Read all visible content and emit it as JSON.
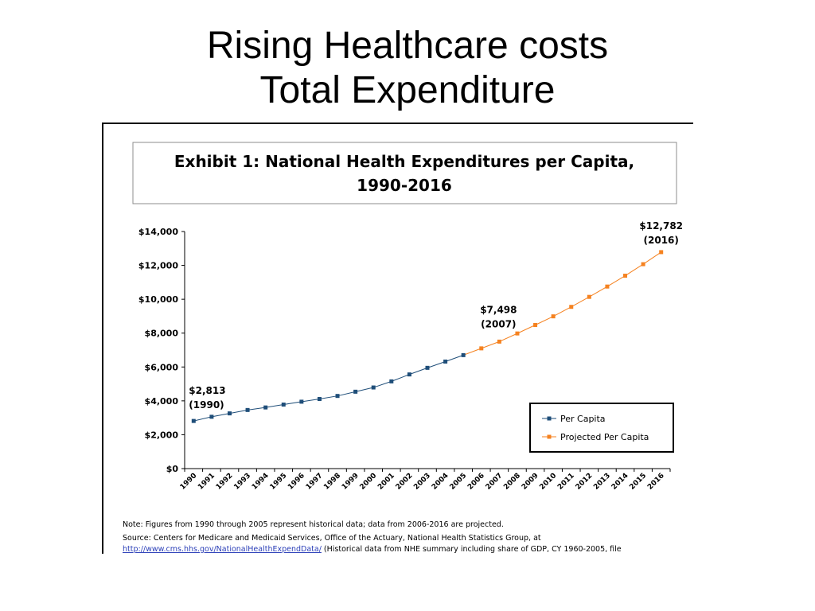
{
  "slide": {
    "title_line1": "Rising Healthcare costs",
    "title_line2": "Total Expenditure"
  },
  "chart_data": {
    "type": "line",
    "title": "Exhibit 1: National Health Expenditures per Capita, 1990-2016",
    "title_line1": "Exhibit 1: National Health Expenditures per Capita,",
    "title_line2": "1990-2016",
    "x": [
      "1990",
      "1991",
      "1992",
      "1993",
      "1994",
      "1995",
      "1996",
      "1997",
      "1998",
      "1999",
      "2000",
      "2001",
      "2002",
      "2003",
      "2004",
      "2005",
      "2006",
      "2007",
      "2008",
      "2009",
      "2010",
      "2011",
      "2012",
      "2013",
      "2014",
      "2015",
      "2016"
    ],
    "ylim": [
      0,
      14000
    ],
    "yticks": [
      0,
      2000,
      4000,
      6000,
      8000,
      10000,
      12000,
      14000
    ],
    "ytick_labels": [
      "$0",
      "$2,000",
      "$4,000",
      "$6,000",
      "$8,000",
      "$10,000",
      "$12,000",
      "$14,000"
    ],
    "series": [
      {
        "name": "Per Capita",
        "color": "#1f4e79",
        "x": [
          "1990",
          "1991",
          "1992",
          "1993",
          "1994",
          "1995",
          "1996",
          "1997",
          "1998",
          "1999",
          "2000",
          "2001",
          "2002",
          "2003",
          "2004",
          "2005"
        ],
        "values": [
          2813,
          3060,
          3260,
          3460,
          3610,
          3780,
          3950,
          4110,
          4290,
          4540,
          4790,
          5150,
          5560,
          5950,
          6320,
          6700
        ]
      },
      {
        "name": "Projected Per Capita",
        "color": "#f58220",
        "x": [
          "2006",
          "2007",
          "2008",
          "2009",
          "2010",
          "2011",
          "2012",
          "2013",
          "2014",
          "2015",
          "2016"
        ],
        "values": [
          7100,
          7498,
          7980,
          8480,
          8990,
          9550,
          10140,
          10750,
          11390,
          12070,
          12782
        ]
      }
    ],
    "annotations": [
      {
        "x": "1990",
        "value": 2813,
        "line1": "$2,813",
        "line2": "(1990)"
      },
      {
        "x": "2007",
        "value": 7498,
        "line1": "$7,498",
        "line2": "(2007)"
      },
      {
        "x": "2016",
        "value": 12782,
        "line1": "$12,782",
        "line2": "(2016)"
      }
    ],
    "legend": {
      "position": "bottom-right",
      "items": [
        "Per Capita",
        "Projected Per Capita"
      ]
    },
    "grid": false,
    "note": "Note: Figures from 1990 through 2005 represent historical data; data from 2006-2016 are projected.",
    "source_line1": "Source: Centers for Medicare and Medicaid Services, Office of the Actuary, National Health Statistics Group, at",
    "source_link": "http://www.cms.hhs.gov/NationalHealthExpendData/",
    "source_line2_rest": " (Historical data from NHE summary including share of GDP, CY 1960-2005, file"
  }
}
